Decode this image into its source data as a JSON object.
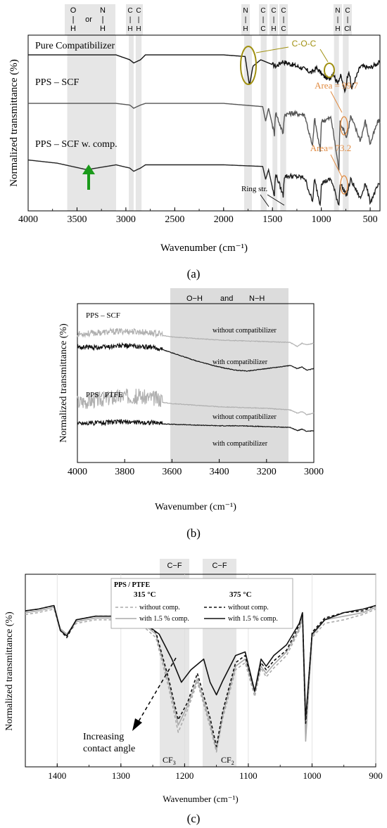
{
  "chart_data": [
    {
      "panel_label": "(a)",
      "type": "line",
      "xlabel": "Wavenumber (cm⁻¹)",
      "ylabel": "Normalized transmittance (%)",
      "xlim": [
        4000,
        400
      ],
      "x_reversed": true,
      "xticks": [
        4000,
        3500,
        3000,
        2500,
        2000,
        1500,
        1000,
        500
      ],
      "series": [
        {
          "name": "Pure Compatibilizer",
          "color": "#111111",
          "x": [
            4000,
            3500,
            3100,
            2960,
            2920,
            2850,
            2800,
            2000,
            1780,
            1735,
            1700,
            1620,
            1540,
            1460,
            1400,
            1300,
            1200,
            1100,
            1050,
            980,
            920,
            880,
            840,
            800,
            760,
            720,
            690,
            600,
            500,
            420
          ],
          "y": [
            0.93,
            0.93,
            0.93,
            0.9,
            0.88,
            0.9,
            0.93,
            0.93,
            0.92,
            0.74,
            0.86,
            0.9,
            0.88,
            0.86,
            0.89,
            0.87,
            0.85,
            0.82,
            0.85,
            0.8,
            0.78,
            0.82,
            0.76,
            0.8,
            0.7,
            0.84,
            0.72,
            0.86,
            0.85,
            0.88
          ]
        },
        {
          "name": "PPS – SCF",
          "color": "#555555",
          "x": [
            4000,
            3600,
            3100,
            2960,
            2920,
            2850,
            2800,
            2000,
            1600,
            1570,
            1540,
            1480,
            1470,
            1390,
            1380,
            1300,
            1170,
            1090,
            1070,
            1010,
            1000,
            900,
            820,
            810,
            740,
            700,
            600,
            550,
            500,
            420
          ],
          "y": [
            0.63,
            0.63,
            0.63,
            0.62,
            0.6,
            0.62,
            0.63,
            0.63,
            0.61,
            0.52,
            0.6,
            0.44,
            0.58,
            0.44,
            0.56,
            0.57,
            0.56,
            0.36,
            0.54,
            0.33,
            0.52,
            0.54,
            0.22,
            0.52,
            0.42,
            0.55,
            0.4,
            0.52,
            0.38,
            0.52
          ]
        },
        {
          "name": "PPS – SCF w. comp.",
          "color": "#222222",
          "x": [
            4000,
            3700,
            3400,
            3200,
            3100,
            2960,
            2920,
            2850,
            2800,
            2000,
            1600,
            1570,
            1540,
            1480,
            1470,
            1390,
            1380,
            1300,
            1170,
            1090,
            1070,
            1010,
            1000,
            900,
            820,
            810,
            740,
            700,
            600,
            550,
            500,
            420
          ],
          "y": [
            0.28,
            0.26,
            0.22,
            0.24,
            0.25,
            0.23,
            0.21,
            0.23,
            0.25,
            0.25,
            0.24,
            0.16,
            0.22,
            0.05,
            0.2,
            0.06,
            0.18,
            0.18,
            0.17,
            0.02,
            0.16,
            0.0,
            0.14,
            0.16,
            0.0,
            0.14,
            0.06,
            0.16,
            0.04,
            0.14,
            0.02,
            0.12
          ]
        }
      ],
      "band_labels": [
        {
          "top": "O",
          "bar": "|",
          "bottom": "H",
          "mid": "or",
          "top2": "N",
          "bar2": "|",
          "bottom2": "H"
        },
        {
          "top": "C",
          "bar": "|",
          "bottom": "H"
        },
        {
          "top": "C",
          "bar": "|",
          "bottom": "H"
        },
        {
          "top": "N",
          "bar": "|",
          "bottom": "H"
        },
        {
          "top": "C",
          "bar": "|",
          "bottom": "C"
        },
        {
          "top": "C",
          "bar": "|",
          "bottom": "H"
        },
        {
          "top": "C",
          "bar": "|",
          "bottom": "C"
        },
        {
          "top": "N",
          "bar": "|",
          "bottom": "H"
        },
        {
          "top": "C",
          "bar": "|",
          "bottom": "Cl"
        }
      ],
      "annotations": {
        "coc": "C-O-C",
        "area1": "Area = 99.7",
        "area2": "Area= 73.2",
        "ring": "Ring str."
      },
      "colors": {
        "annotation_olive": "#a09010",
        "annotation_orange": "#e08a40",
        "arrow_green": "#1a9a1a",
        "band_gray": "#e6e6e6"
      }
    },
    {
      "panel_label": "(b)",
      "type": "line",
      "xlabel": "Wavenumber (cm⁻¹)",
      "ylabel": "Normalized transmittance (%)",
      "xlim": [
        4000,
        3000
      ],
      "x_reversed": true,
      "xticks": [
        4000,
        3800,
        3600,
        3400,
        3200,
        3000
      ],
      "band_title": {
        "left": "O−H",
        "mid": "and",
        "right": "N−H"
      },
      "group_labels": [
        "PPS – SCF",
        "PPS / PTFE"
      ],
      "series": [
        {
          "name": "without compatibilizer",
          "group": "PPS – SCF",
          "color": "#b0b0b0",
          "noisy": true,
          "x": [
            4000,
            3900,
            3800,
            3700,
            3600,
            3500,
            3400,
            3300,
            3200,
            3100,
            3070,
            3050,
            3030,
            3000
          ],
          "y": [
            0.8,
            0.81,
            0.82,
            0.81,
            0.79,
            0.78,
            0.77,
            0.765,
            0.76,
            0.755,
            0.73,
            0.75,
            0.74,
            0.75
          ]
        },
        {
          "name": "with compatibilizer",
          "group": "PPS – SCF",
          "color": "#111111",
          "noisy": true,
          "x": [
            4000,
            3900,
            3800,
            3700,
            3640,
            3600,
            3500,
            3400,
            3330,
            3280,
            3230,
            3150,
            3100,
            3070,
            3050,
            3030,
            3000
          ],
          "y": [
            0.72,
            0.72,
            0.73,
            0.72,
            0.71,
            0.69,
            0.64,
            0.6,
            0.58,
            0.575,
            0.585,
            0.6,
            0.61,
            0.59,
            0.6,
            0.58,
            0.59
          ]
        },
        {
          "name": "without compatibilizer",
          "group": "PPS / PTFE",
          "color": "#b0b0b0",
          "noisy": true,
          "x": [
            4000,
            3900,
            3800,
            3700,
            3600,
            3500,
            3400,
            3300,
            3200,
            3100,
            3070,
            3050,
            3030,
            3000
          ],
          "y": [
            0.36,
            0.38,
            0.4,
            0.39,
            0.37,
            0.36,
            0.35,
            0.345,
            0.34,
            0.33,
            0.31,
            0.32,
            0.3,
            0.31
          ]
        },
        {
          "name": "with compatibilizer",
          "group": "PPS / PTFE",
          "color": "#111111",
          "noisy": true,
          "x": [
            4000,
            3900,
            3800,
            3700,
            3600,
            3500,
            3400,
            3300,
            3200,
            3100,
            3070,
            3050,
            3030,
            3000
          ],
          "y": [
            0.24,
            0.245,
            0.25,
            0.245,
            0.24,
            0.235,
            0.23,
            0.23,
            0.225,
            0.22,
            0.2,
            0.21,
            0.195,
            0.2
          ]
        }
      ],
      "series_labels": [
        "without compatibilizer",
        "with compatibilizer",
        "without compatibilizer",
        "with compatibilizer"
      ]
    },
    {
      "panel_label": "(c)",
      "type": "line",
      "xlabel": "Wavenumber (cm⁻¹)",
      "ylabel": "Normalized transmittance (%)",
      "xlim": [
        1450,
        900
      ],
      "x_reversed": true,
      "xticks": [
        1400,
        1300,
        1200,
        1100,
        1000,
        900
      ],
      "band_labels": [
        "C−F",
        "C−F"
      ],
      "peak_labels": [
        {
          "base": "CF",
          "sub": "3"
        },
        {
          "base": "CF",
          "sub": "2"
        }
      ],
      "legend": {
        "title": "PPS / PTFE",
        "col1_title": "315 °C",
        "col2_title": "375 °C",
        "entries": [
          {
            "label": "without comp.",
            "temp": "315 °C",
            "style": "dashed",
            "color": "#aaaaaa"
          },
          {
            "label": "with 1.5 % comp.",
            "temp": "315 °C",
            "style": "solid",
            "color": "#aaaaaa"
          },
          {
            "label": "without comp.",
            "temp": "375 °C",
            "style": "dashed",
            "color": "#111111"
          },
          {
            "label": "with 1.5 % comp.",
            "temp": "375 °C",
            "style": "solid",
            "color": "#111111"
          }
        ]
      },
      "annotation": {
        "line1": "Increasing",
        "line2": "contact angle"
      },
      "series": [
        {
          "name": "without comp. 315 °C",
          "color": "#aaaaaa",
          "dash": "4,3",
          "x": [
            1450,
            1430,
            1405,
            1395,
            1385,
            1370,
            1340,
            1300,
            1270,
            1245,
            1225,
            1210,
            1195,
            1180,
            1160,
            1150,
            1140,
            1120,
            1105,
            1090,
            1080,
            1072,
            1060,
            1040,
            1020,
            1015,
            1010,
            1000,
            980,
            950,
            920,
            900
          ],
          "y": [
            0.83,
            0.84,
            0.86,
            0.74,
            0.71,
            0.78,
            0.8,
            0.8,
            0.78,
            0.7,
            0.42,
            0.17,
            0.3,
            0.45,
            0.2,
            0.06,
            0.25,
            0.52,
            0.56,
            0.37,
            0.53,
            0.48,
            0.53,
            0.6,
            0.74,
            0.8,
            0.16,
            0.7,
            0.78,
            0.8,
            0.83,
            0.86
          ]
        },
        {
          "name": "with 1.5 % comp. 315 °C",
          "color": "#aaaaaa",
          "dash": "",
          "x": [
            1450,
            1430,
            1405,
            1395,
            1385,
            1370,
            1340,
            1300,
            1270,
            1245,
            1225,
            1210,
            1195,
            1180,
            1160,
            1150,
            1140,
            1120,
            1105,
            1090,
            1080,
            1072,
            1060,
            1040,
            1020,
            1015,
            1010,
            1000,
            980,
            950,
            920,
            900
          ],
          "y": [
            0.84,
            0.85,
            0.87,
            0.75,
            0.72,
            0.79,
            0.81,
            0.81,
            0.79,
            0.72,
            0.45,
            0.21,
            0.32,
            0.47,
            0.22,
            0.07,
            0.27,
            0.54,
            0.58,
            0.39,
            0.54,
            0.5,
            0.55,
            0.62,
            0.75,
            0.82,
            0.12,
            0.71,
            0.8,
            0.82,
            0.84,
            0.87
          ]
        },
        {
          "name": "without comp. 375 °C",
          "color": "#111111",
          "dash": "4,3",
          "x": [
            1450,
            1430,
            1405,
            1395,
            1385,
            1370,
            1340,
            1300,
            1270,
            1245,
            1225,
            1210,
            1195,
            1180,
            1160,
            1150,
            1140,
            1120,
            1105,
            1090,
            1080,
            1072,
            1060,
            1040,
            1020,
            1015,
            1010,
            1000,
            980,
            950,
            920,
            900
          ],
          "y": [
            0.85,
            0.86,
            0.88,
            0.74,
            0.7,
            0.8,
            0.82,
            0.82,
            0.8,
            0.73,
            0.47,
            0.24,
            0.34,
            0.5,
            0.25,
            0.09,
            0.29,
            0.56,
            0.6,
            0.4,
            0.56,
            0.52,
            0.57,
            0.63,
            0.77,
            0.84,
            0.22,
            0.73,
            0.81,
            0.84,
            0.85,
            0.88
          ]
        },
        {
          "name": "with 1.5 % comp. 375 °C",
          "color": "#111111",
          "dash": "",
          "x": [
            1450,
            1430,
            1405,
            1395,
            1385,
            1370,
            1340,
            1300,
            1270,
            1240,
            1220,
            1205,
            1190,
            1170,
            1160,
            1150,
            1140,
            1120,
            1105,
            1090,
            1080,
            1072,
            1060,
            1040,
            1020,
            1015,
            1010,
            1000,
            980,
            950,
            920,
            900
          ],
          "y": [
            0.85,
            0.86,
            0.88,
            0.74,
            0.71,
            0.8,
            0.82,
            0.82,
            0.8,
            0.72,
            0.58,
            0.45,
            0.52,
            0.58,
            0.45,
            0.38,
            0.46,
            0.6,
            0.62,
            0.4,
            0.58,
            0.54,
            0.6,
            0.66,
            0.78,
            0.84,
            0.24,
            0.72,
            0.8,
            0.84,
            0.86,
            0.88
          ]
        }
      ]
    }
  ]
}
